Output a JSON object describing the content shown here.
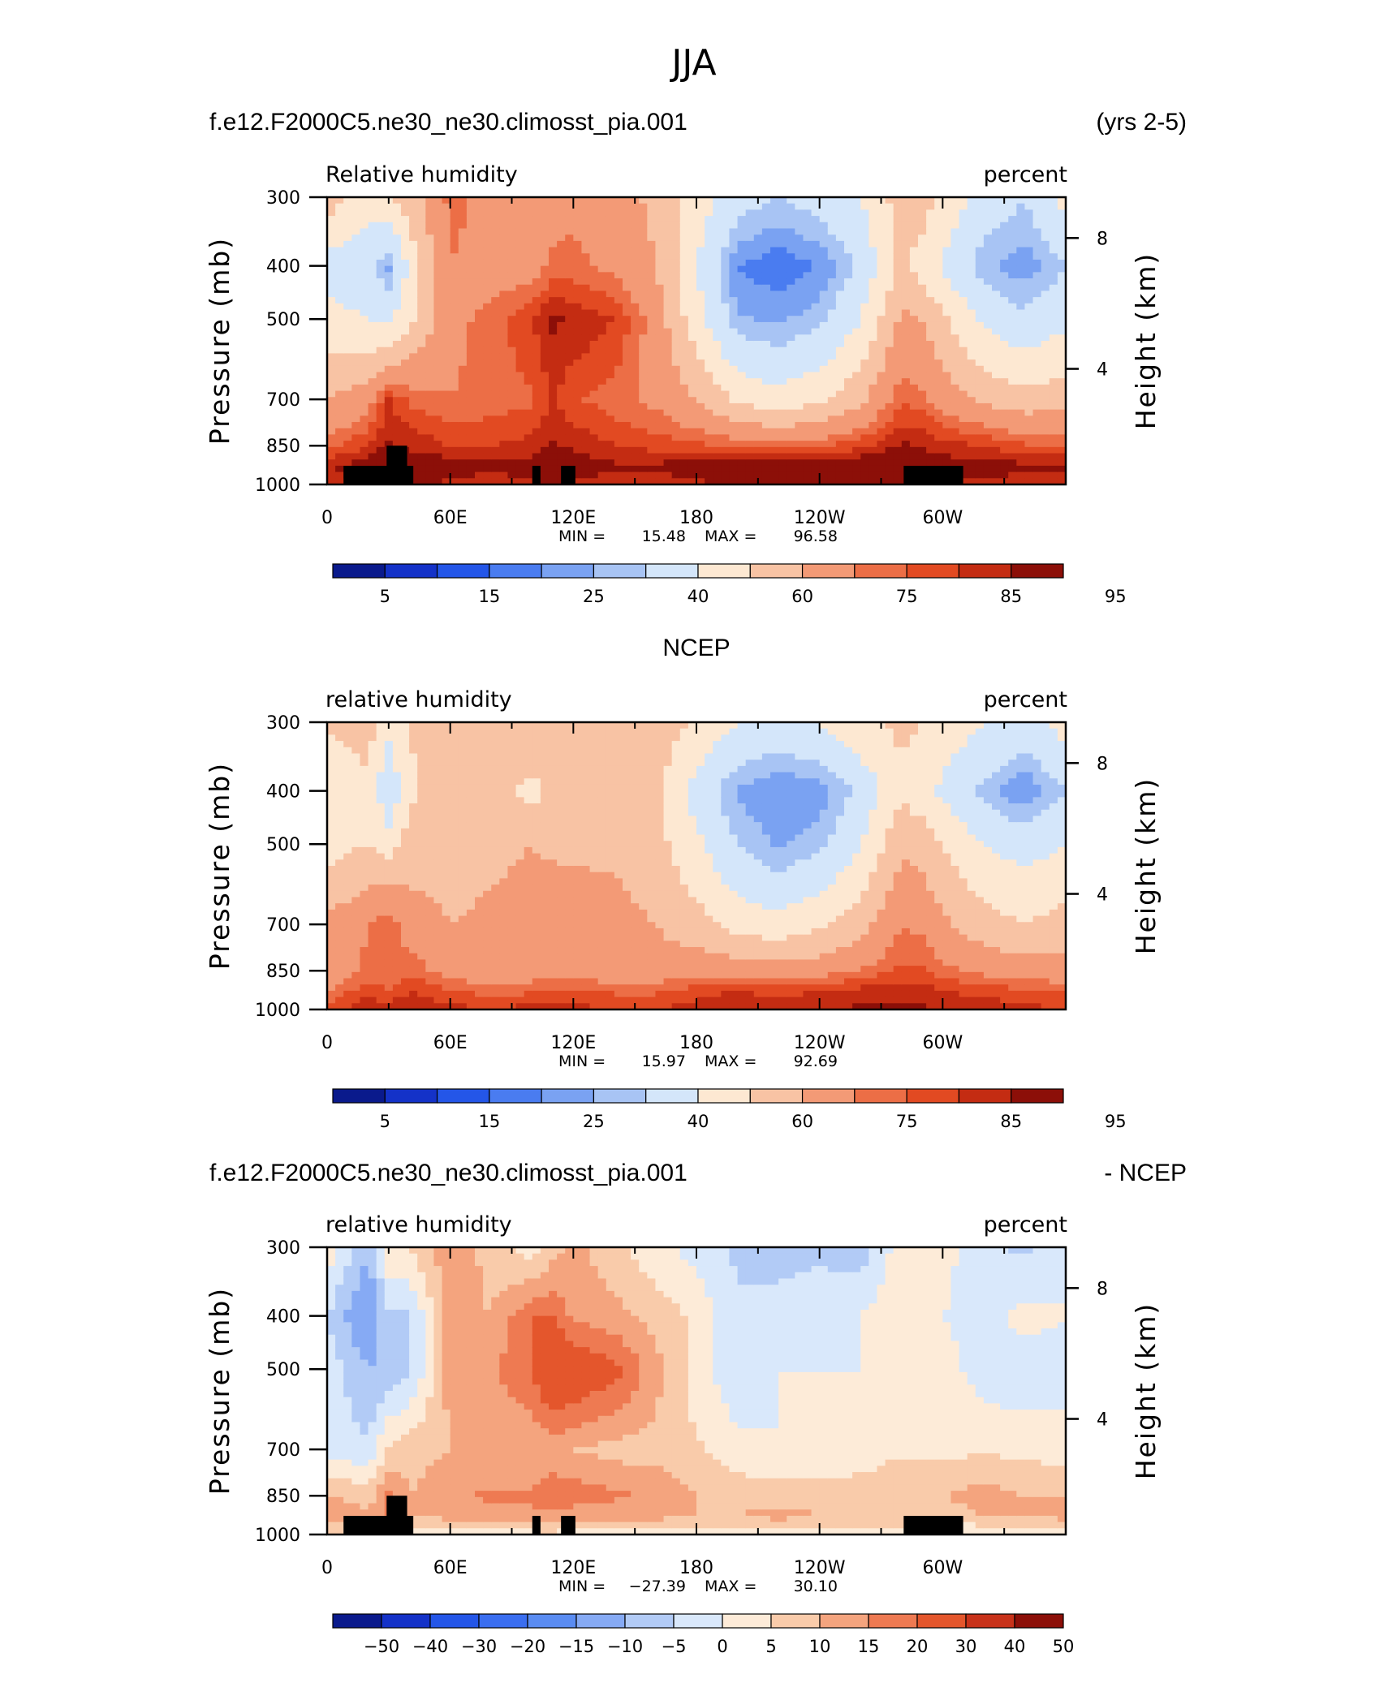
{
  "figure": {
    "title": "JJA"
  },
  "palettes": {
    "abs": [
      "#0a1a8c",
      "#1432c8",
      "#2456e8",
      "#4a7cf0",
      "#7aa2f2",
      "#a8c4f4",
      "#d4e6fa",
      "#fde8d2",
      "#f8c3a4",
      "#f39a76",
      "#ec6e46",
      "#e24a22",
      "#c42c12",
      "#8c0f08"
    ],
    "diff": [
      "#0a1a8c",
      "#1432c8",
      "#2456e8",
      "#3a6ef0",
      "#5a8cf2",
      "#86aaf4",
      "#b2cbf6",
      "#d9e8fb",
      "#fdebd8",
      "#f9cbaa",
      "#f4a47e",
      "#ee7a52",
      "#e4562c",
      "#c8321a",
      "#8c0f08"
    ],
    "land": "#000000"
  },
  "chart_data": [
    {
      "type": "heatmap",
      "case_left": "f.e12.F2000C5.ne30_ne30.climosst_pia.001",
      "case_right": "(yrs 2-5)",
      "center_title": "",
      "left_subtitle": "Relative humidity",
      "right_subtitle": "percent",
      "ylabel": "Pressure (mb)",
      "ylabel_right": "Height (km)",
      "y_ticks": [
        300,
        400,
        500,
        700,
        850,
        1000
      ],
      "y_right_ticks": [
        "8",
        "4"
      ],
      "x_ticks": [
        "0",
        "60E",
        "120E",
        "180",
        "120W",
        "60W"
      ],
      "min_label": "MIN =",
      "min_value": "15.48",
      "max_label": "MAX =",
      "max_value": "96.58",
      "colorbar_ticks": [
        "5",
        "15",
        "25",
        "40",
        "60",
        "75",
        "85",
        "95"
      ],
      "levels": [
        5,
        10,
        15,
        20,
        25,
        30,
        40,
        50,
        60,
        70,
        75,
        80,
        85,
        90,
        95
      ],
      "masked_below_ground": true,
      "field": {
        "lon": [
          0,
          20,
          30,
          40,
          60,
          80,
          100,
          110,
          120,
          140,
          160,
          180,
          200,
          220,
          240,
          260,
          280,
          290,
          300,
          320,
          340,
          360
        ],
        "p": [
          300,
          400,
          500,
          700,
          850,
          925,
          1000
        ],
        "values": [
          [
            55,
            44,
            48,
            55,
            72,
            68,
            62,
            66,
            68,
            64,
            58,
            46,
            34,
            30,
            34,
            40,
            55,
            54,
            48,
            36,
            30,
            44
          ],
          [
            35,
            32,
            24,
            42,
            70,
            66,
            66,
            72,
            72,
            68,
            60,
            40,
            20,
            16,
            20,
            32,
            52,
            46,
            38,
            26,
            22,
            30
          ],
          [
            44,
            40,
            38,
            48,
            68,
            72,
            80,
            86,
            84,
            80,
            66,
            44,
            26,
            24,
            28,
            40,
            62,
            60,
            52,
            38,
            32,
            38
          ],
          [
            60,
            66,
            80,
            74,
            70,
            72,
            74,
            80,
            76,
            72,
            68,
            60,
            48,
            44,
            48,
            58,
            74,
            72,
            66,
            58,
            54,
            56
          ],
          [
            72,
            80,
            86,
            84,
            80,
            80,
            82,
            86,
            84,
            80,
            78,
            76,
            74,
            72,
            74,
            78,
            86,
            84,
            82,
            80,
            76,
            74
          ],
          [
            85,
            88,
            92,
            90,
            88,
            86,
            88,
            90,
            88,
            86,
            86,
            88,
            90,
            90,
            90,
            92,
            92,
            90,
            88,
            88,
            86,
            86
          ],
          [
            82,
            86,
            88,
            86,
            84,
            82,
            84,
            86,
            84,
            82,
            82,
            84,
            86,
            86,
            86,
            88,
            88,
            86,
            84,
            84,
            82,
            82
          ]
        ]
      }
    },
    {
      "type": "heatmap",
      "case_left": "",
      "case_right": "",
      "center_title": "NCEP",
      "left_subtitle": "relative humidity",
      "right_subtitle": "percent",
      "ylabel": "Pressure (mb)",
      "ylabel_right": "Height (km)",
      "y_ticks": [
        300,
        400,
        500,
        700,
        850,
        1000
      ],
      "y_right_ticks": [
        "8",
        "4"
      ],
      "x_ticks": [
        "0",
        "60E",
        "120E",
        "180",
        "120W",
        "60W"
      ],
      "min_label": "MIN =",
      "min_value": "15.97",
      "max_label": "MAX =",
      "max_value": "92.69",
      "colorbar_ticks": [
        "5",
        "15",
        "25",
        "40",
        "60",
        "75",
        "85",
        "95"
      ],
      "levels": [
        5,
        10,
        15,
        20,
        25,
        30,
        40,
        50,
        60,
        70,
        75,
        80,
        85,
        90,
        95
      ],
      "masked_below_ground": false,
      "field": {
        "lon": [
          0,
          20,
          30,
          40,
          60,
          80,
          100,
          110,
          120,
          140,
          160,
          180,
          200,
          220,
          240,
          260,
          280,
          290,
          300,
          320,
          340,
          360
        ],
        "p": [
          300,
          400,
          500,
          700,
          850,
          925,
          1000
        ],
        "values": [
          [
            52,
            54,
            44,
            50,
            58,
            60,
            60,
            58,
            56,
            58,
            56,
            48,
            40,
            36,
            40,
            48,
            52,
            50,
            46,
            40,
            36,
            44
          ],
          [
            40,
            48,
            30,
            48,
            58,
            56,
            46,
            52,
            58,
            56,
            52,
            36,
            24,
            20,
            22,
            32,
            48,
            44,
            38,
            28,
            20,
            30
          ],
          [
            46,
            50,
            46,
            54,
            56,
            58,
            60,
            58,
            58,
            58,
            54,
            42,
            30,
            24,
            28,
            40,
            58,
            56,
            50,
            40,
            36,
            40
          ],
          [
            62,
            70,
            74,
            66,
            60,
            62,
            64,
            68,
            66,
            64,
            60,
            54,
            46,
            44,
            48,
            56,
            70,
            68,
            62,
            54,
            50,
            54
          ],
          [
            62,
            72,
            70,
            74,
            66,
            64,
            66,
            68,
            66,
            64,
            64,
            66,
            66,
            64,
            66,
            70,
            76,
            76,
            72,
            68,
            66,
            64
          ],
          [
            70,
            78,
            76,
            80,
            76,
            72,
            74,
            76,
            76,
            74,
            74,
            78,
            80,
            78,
            80,
            82,
            84,
            82,
            80,
            78,
            76,
            74
          ],
          [
            78,
            84,
            82,
            84,
            82,
            80,
            82,
            82,
            82,
            80,
            80,
            82,
            84,
            84,
            84,
            86,
            86,
            86,
            84,
            84,
            82,
            80
          ]
        ]
      }
    },
    {
      "type": "heatmap",
      "case_left": "f.e12.F2000C5.ne30_ne30.climosst_pia.001",
      "case_right": "- NCEP",
      "center_title": "",
      "left_subtitle": "relative humidity",
      "right_subtitle": "percent",
      "ylabel": "Pressure (mb)",
      "ylabel_right": "Height (km)",
      "y_ticks": [
        300,
        400,
        500,
        700,
        850,
        1000
      ],
      "y_right_ticks": [
        "8",
        "4"
      ],
      "x_ticks": [
        "0",
        "60E",
        "120E",
        "180",
        "120W",
        "60W"
      ],
      "min_label": "MIN =",
      "min_value": "−27.39",
      "max_label": "MAX =",
      "max_value": "30.10",
      "colorbar_ticks": [
        "−50",
        "−40",
        "−30",
        "−20",
        "−15",
        "−10",
        "−5",
        "0",
        "5",
        "10",
        "15",
        "20",
        "30",
        "40",
        "50"
      ],
      "levels": [
        -50,
        -40,
        -30,
        -20,
        -15,
        -10,
        -5,
        0,
        5,
        10,
        15,
        20,
        30,
        40
      ],
      "masked_below_ground": true,
      "field": {
        "lon": [
          0,
          20,
          30,
          40,
          60,
          80,
          100,
          110,
          120,
          140,
          160,
          180,
          200,
          220,
          240,
          260,
          280,
          290,
          300,
          320,
          340,
          360
        ],
        "p": [
          300,
          400,
          500,
          700,
          850,
          925,
          1000
        ],
        "values": [
          [
            3,
            -10,
            4,
            5,
            14,
            8,
            2,
            8,
            12,
            6,
            2,
            -2,
            -6,
            -6,
            -6,
            -8,
            3,
            4,
            2,
            -4,
            -6,
            0
          ],
          [
            -5,
            -16,
            -6,
            -6,
            12,
            10,
            20,
            20,
            14,
            12,
            8,
            4,
            -4,
            -4,
            -2,
            0,
            4,
            2,
            0,
            -2,
            2,
            0
          ],
          [
            -2,
            -10,
            -8,
            -6,
            12,
            14,
            20,
            28,
            26,
            22,
            12,
            2,
            -4,
            0,
            0,
            0,
            4,
            4,
            2,
            -2,
            -4,
            -2
          ],
          [
            -2,
            -4,
            6,
            8,
            10,
            10,
            10,
            12,
            10,
            8,
            8,
            6,
            2,
            0,
            0,
            2,
            4,
            4,
            4,
            4,
            4,
            2
          ],
          [
            10,
            8,
            16,
            10,
            14,
            16,
            16,
            18,
            18,
            16,
            14,
            10,
            8,
            8,
            8,
            8,
            10,
            8,
            10,
            12,
            10,
            10
          ],
          [
            15,
            10,
            16,
            10,
            12,
            14,
            14,
            14,
            12,
            12,
            12,
            10,
            10,
            12,
            10,
            10,
            8,
            8,
            8,
            10,
            10,
            12
          ],
          [
            4,
            2,
            6,
            2,
            2,
            2,
            2,
            4,
            2,
            2,
            2,
            2,
            2,
            2,
            2,
            2,
            2,
            2,
            0,
            0,
            0,
            2
          ]
        ]
      }
    }
  ]
}
